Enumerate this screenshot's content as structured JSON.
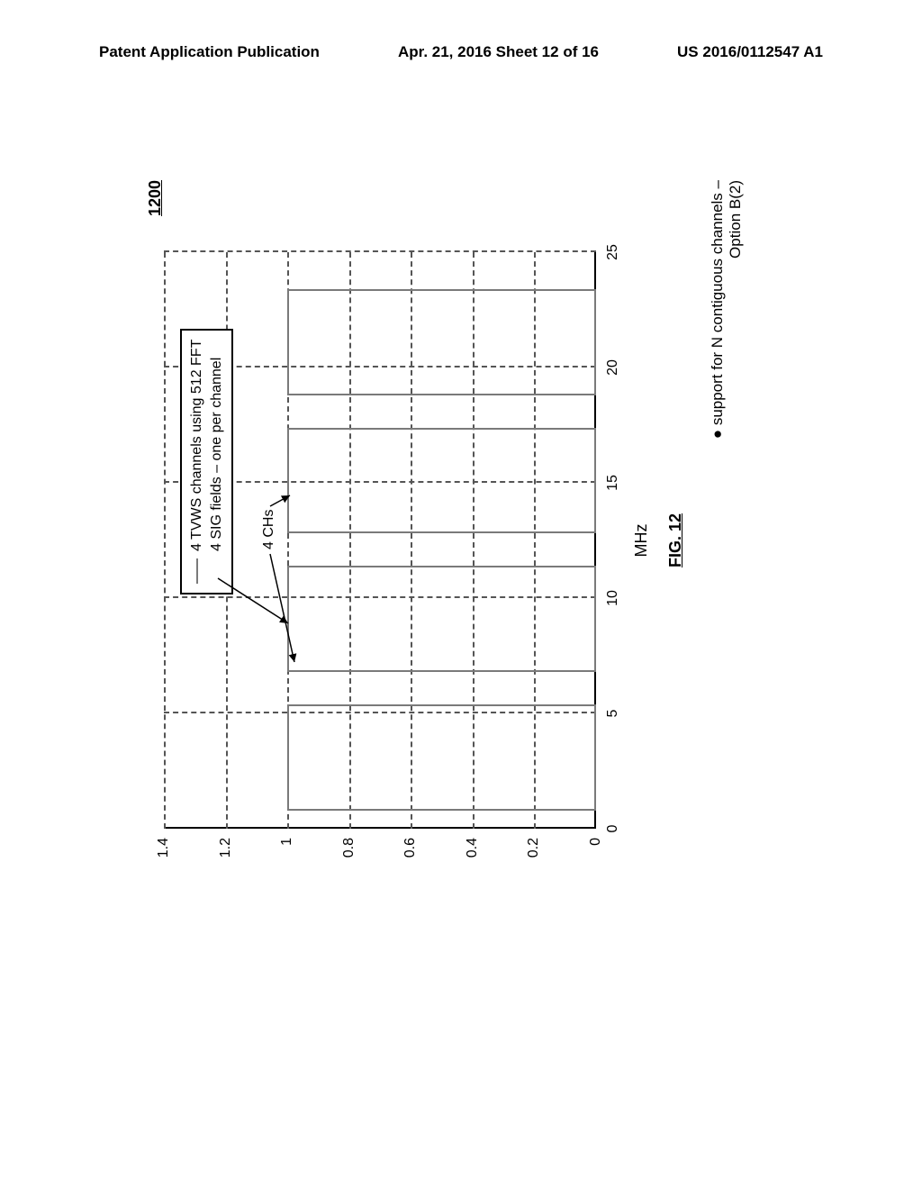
{
  "header": {
    "left": "Patent Application Publication",
    "center": "Apr. 21, 2016  Sheet 12 of 16",
    "right": "US 2016/0112547 A1"
  },
  "figure_number": "1200",
  "chart": {
    "type": "line",
    "xlim": [
      0,
      25
    ],
    "ylim": [
      0,
      1.4
    ],
    "xticks": [
      0,
      5,
      10,
      15,
      20,
      25
    ],
    "yticks": [
      0,
      0.2,
      0.4,
      0.6,
      0.8,
      1,
      1.2,
      1.4
    ],
    "xlabel": "MHz",
    "grid_color": "#555555",
    "axis_color": "#000000",
    "background": "#ffffff",
    "channels": {
      "height_value": 1.0,
      "color": "#7a7a7a",
      "segments": [
        {
          "x_start": 0.8,
          "x_end": 5.4
        },
        {
          "x_start": 6.8,
          "x_end": 11.4
        },
        {
          "x_start": 12.8,
          "x_end": 17.4
        },
        {
          "x_start": 18.8,
          "x_end": 23.4
        }
      ]
    },
    "legend": {
      "line1": "4 TVWS channels using 512 FFT",
      "line2": "4 SIG fields – one per channel"
    },
    "chs_label": "4 CHs"
  },
  "caption": {
    "fig_label": "FIG. 12",
    "support_line1": "● support for N contiguous channels –",
    "support_line2": "Option B(2)"
  }
}
